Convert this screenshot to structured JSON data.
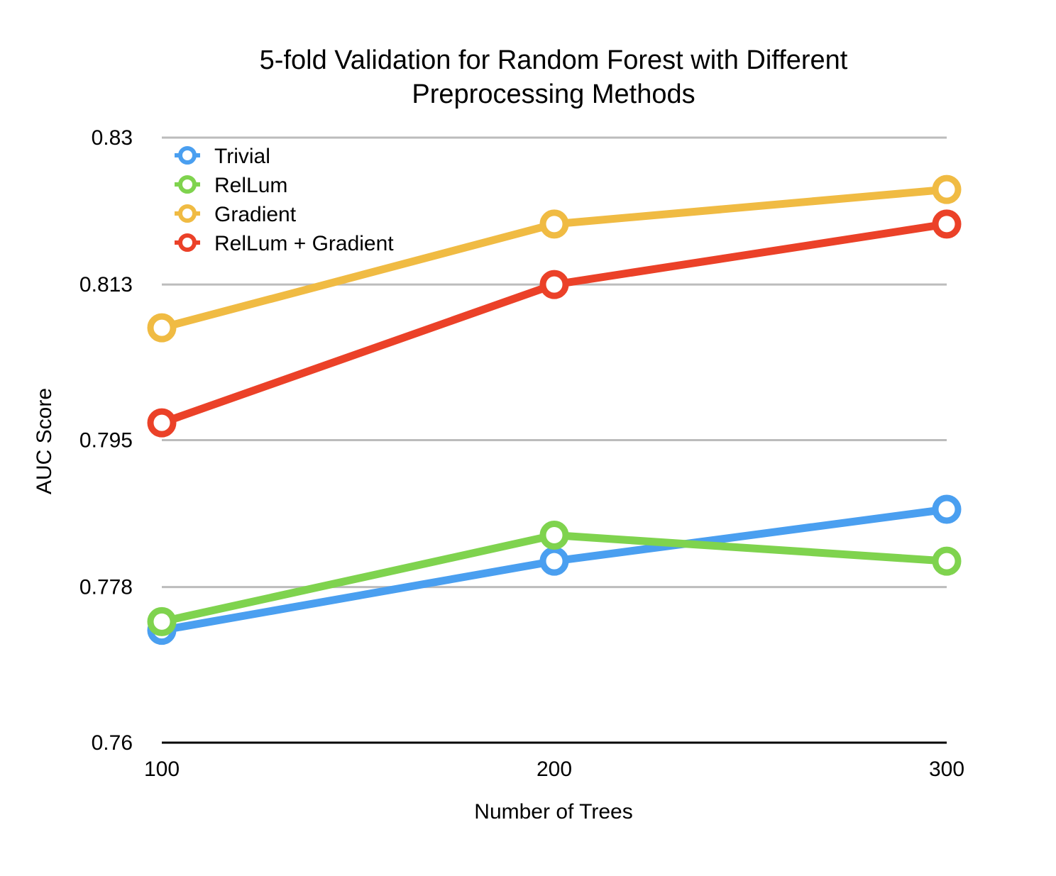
{
  "chart_data": {
    "type": "line",
    "title_lines": [
      "5-fold Validation for Random Forest with Different",
      "Preprocessing Methods"
    ],
    "xlabel": "Number of Trees",
    "ylabel": "AUC Score",
    "categories": [
      "100",
      "200",
      "300"
    ],
    "x": [
      100,
      200,
      300
    ],
    "ylim": [
      0.76,
      0.83
    ],
    "yticks": [
      0.76,
      0.778,
      0.795,
      0.813,
      0.83
    ],
    "ytick_labels": [
      "0.76",
      "0.778",
      "0.795",
      "0.813",
      "0.83"
    ],
    "grid": true,
    "legend_position": "top-left",
    "series": [
      {
        "name": "Trivial",
        "color": "#4a9ff0",
        "values": [
          0.773,
          0.781,
          0.787
        ]
      },
      {
        "name": "RelLum",
        "color": "#7fd34e",
        "values": [
          0.774,
          0.784,
          0.781
        ]
      },
      {
        "name": "Gradient",
        "color": "#f0bb43",
        "values": [
          0.808,
          0.82,
          0.824
        ]
      },
      {
        "name": "RelLum + Gradient",
        "color": "#eb4128",
        "values": [
          0.797,
          0.813,
          0.82
        ]
      }
    ]
  }
}
